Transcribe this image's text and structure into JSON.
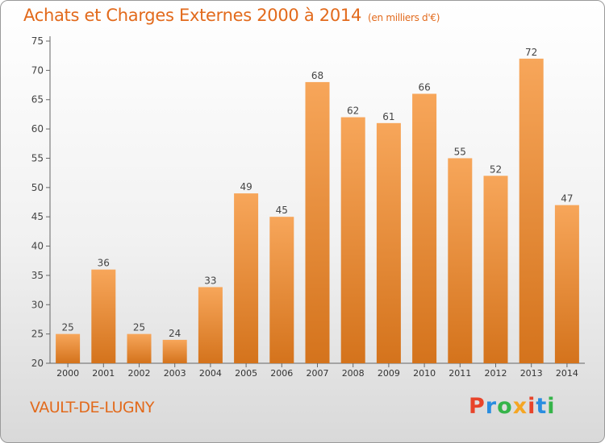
{
  "chart_data": {
    "type": "bar",
    "title": "Achats et Charges Externes 2000 à 2014",
    "unit_label": "(en milliers d'€)",
    "categories": [
      "2000",
      "2001",
      "2002",
      "2003",
      "2004",
      "2005",
      "2006",
      "2007",
      "2008",
      "2009",
      "2010",
      "2011",
      "2012",
      "2013",
      "2014"
    ],
    "values": [
      25,
      36,
      25,
      24,
      33,
      49,
      45,
      68,
      62,
      61,
      66,
      55,
      52,
      72,
      47
    ],
    "ylim": [
      20,
      75
    ],
    "yticks": [
      20,
      25,
      30,
      35,
      40,
      45,
      50,
      55,
      60,
      65,
      70,
      75
    ],
    "grid": false,
    "bar_color_top": "#f7a65a",
    "bar_color_bottom": "#d4731c",
    "xlabel": "",
    "ylabel": ""
  },
  "footer": {
    "city": "VAULT-DE-LUGNY",
    "logo": "Proxiti",
    "logo_colors": [
      "#e8442a",
      "#2a8de0",
      "#36b44a",
      "#f5a623",
      "#e8442a",
      "#2a8de0",
      "#36b44a"
    ]
  },
  "colors": {
    "accent": "#e26a1c"
  }
}
